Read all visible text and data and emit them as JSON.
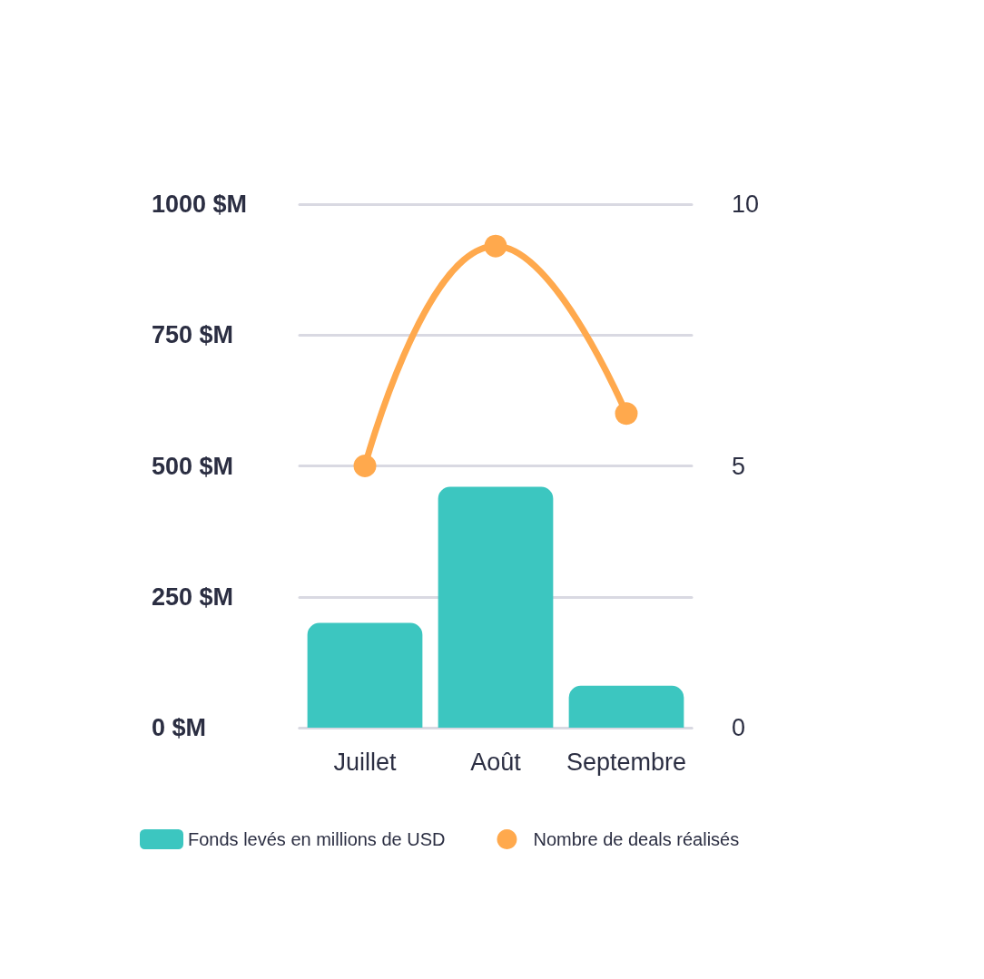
{
  "chart_data": {
    "type": "bar",
    "categories": [
      "Juillet",
      "Août",
      "Septembre"
    ],
    "series": [
      {
        "name": "Fonds levés en millions de USD",
        "color": "#3cc6c0",
        "values": [
          200,
          460,
          80
        ]
      },
      {
        "name": "Nombre de deals réalisés",
        "type": "line",
        "axis": "y2",
        "color": "#ffa94d",
        "values": [
          5,
          9.2,
          6
        ]
      }
    ],
    "ylim": [
      0,
      1000
    ],
    "yticks": [
      {
        "value": 0,
        "label": "0 $M"
      },
      {
        "value": 250,
        "label": "250 $M"
      },
      {
        "value": 500,
        "label": "500 $M"
      },
      {
        "value": 750,
        "label": "750 $M"
      },
      {
        "value": 1000,
        "label": "1000 $M"
      }
    ],
    "y2lim": [
      0,
      10
    ],
    "y2ticks": [
      0,
      5,
      10
    ],
    "grid": "y",
    "legend": "bottom",
    "marker": "circle"
  }
}
